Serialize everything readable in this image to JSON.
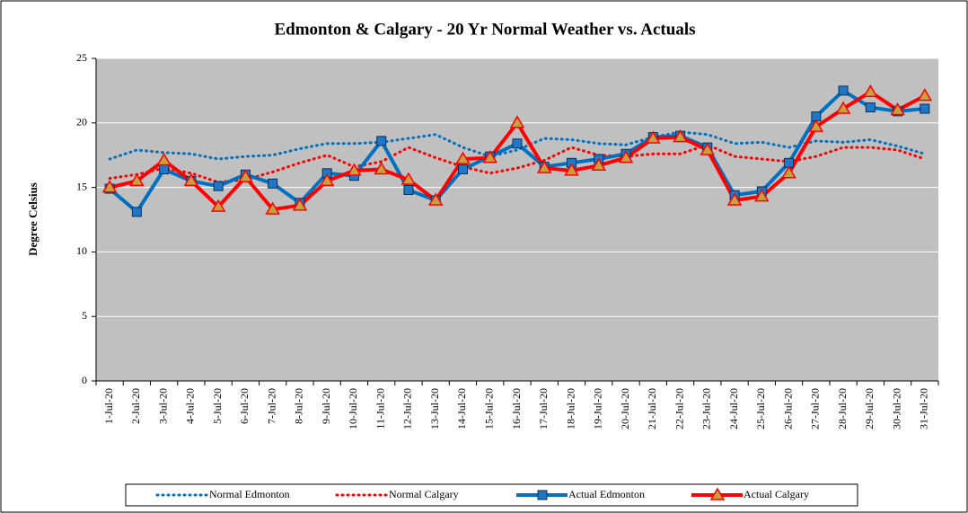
{
  "chart_data": {
    "type": "line",
    "title": "Edmonton & Calgary - 20 Yr Normal Weather vs. Actuals",
    "y_label": "Degree Celsius",
    "categories": [
      "1-Jul-20",
      "2-Jul-20",
      "3-Jul-20",
      "4-Jul-20",
      "5-Jul-20",
      "6-Jul-20",
      "7-Jul-20",
      "8-Jul-20",
      "9-Jul-20",
      "10-Jul-20",
      "11-Jul-20",
      "12-Jul-20",
      "13-Jul-20",
      "14-Jul-20",
      "15-Jul-20",
      "16-Jul-20",
      "17-Jul-20",
      "18-Jul-20",
      "19-Jul-20",
      "20-Jul-20",
      "21-Jul-20",
      "22-Jul-20",
      "23-Jul-20",
      "24-Jul-20",
      "25-Jul-20",
      "26-Jul-20",
      "27-Jul-20",
      "28-Jul-20",
      "29-Jul-20",
      "30-Jul-20",
      "31-Jul-20"
    ],
    "series": [
      {
        "name": "Normal Edmonton",
        "color": "#0070c0",
        "style": "dotted",
        "marker": "none",
        "values": [
          17.2,
          17.9,
          17.7,
          17.6,
          17.2,
          17.4,
          17.5,
          18.0,
          18.4,
          18.4,
          18.5,
          18.8,
          19.1,
          18.1,
          17.4,
          17.9,
          18.8,
          18.7,
          18.4,
          18.3,
          18.9,
          19.3,
          19.1,
          18.4,
          18.5,
          18.1,
          18.6,
          18.5,
          18.7,
          18.2,
          17.6
        ]
      },
      {
        "name": "Normal Calgary",
        "color": "#ff0000",
        "style": "dotted",
        "marker": "none",
        "values": [
          15.7,
          16.0,
          16.5,
          16.1,
          15.4,
          15.6,
          16.2,
          16.9,
          17.5,
          16.6,
          17.0,
          18.1,
          17.3,
          16.6,
          16.1,
          16.5,
          17.1,
          18.1,
          17.5,
          17.4,
          17.6,
          17.6,
          18.3,
          17.4,
          17.2,
          17.0,
          17.4,
          18.1,
          18.1,
          17.9,
          17.2
        ]
      },
      {
        "name": "Actual Edmonton",
        "color": "#0070c0",
        "style": "solid",
        "marker": "square",
        "marker_color": "#1f77c8",
        "values": [
          14.9,
          13.1,
          16.4,
          15.5,
          15.1,
          16.0,
          15.3,
          13.8,
          16.1,
          15.9,
          18.6,
          14.8,
          14.0,
          16.4,
          17.4,
          18.4,
          16.6,
          16.9,
          17.2,
          17.6,
          18.9,
          19.0,
          18.1,
          14.4,
          14.7,
          16.9,
          20.5,
          22.5,
          21.2,
          20.9,
          21.1
        ]
      },
      {
        "name": "Actual Calgary",
        "color": "#ff0000",
        "style": "solid",
        "marker": "triangle",
        "marker_color": "#c8a040",
        "values": [
          15.0,
          15.5,
          17.1,
          15.5,
          13.5,
          15.8,
          13.3,
          13.6,
          15.5,
          16.3,
          16.4,
          15.6,
          14.0,
          17.2,
          17.3,
          20.0,
          16.5,
          16.3,
          16.7,
          17.3,
          18.8,
          18.9,
          17.9,
          14.0,
          14.3,
          16.1,
          19.7,
          21.1,
          22.4,
          21.0,
          22.1
        ]
      }
    ],
    "ylim": [
      0,
      25
    ],
    "yticks": [
      0,
      5,
      10,
      15,
      20,
      25
    ],
    "grid": true,
    "legend": "bottom"
  }
}
